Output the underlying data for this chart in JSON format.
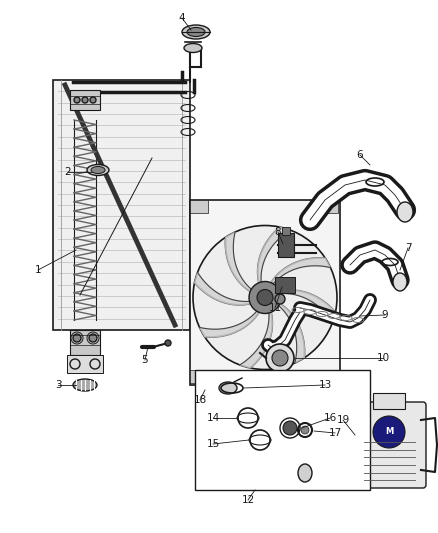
{
  "bg_color": "#ffffff",
  "fig_width": 4.38,
  "fig_height": 5.33,
  "dpi": 100,
  "line_color": "#1a1a1a",
  "label_fontsize": 7.5,
  "label_color": "#1a1a1a",
  "part_color": "#c8c8c8",
  "dark_color": "#555555",
  "mid_color": "#888888"
}
